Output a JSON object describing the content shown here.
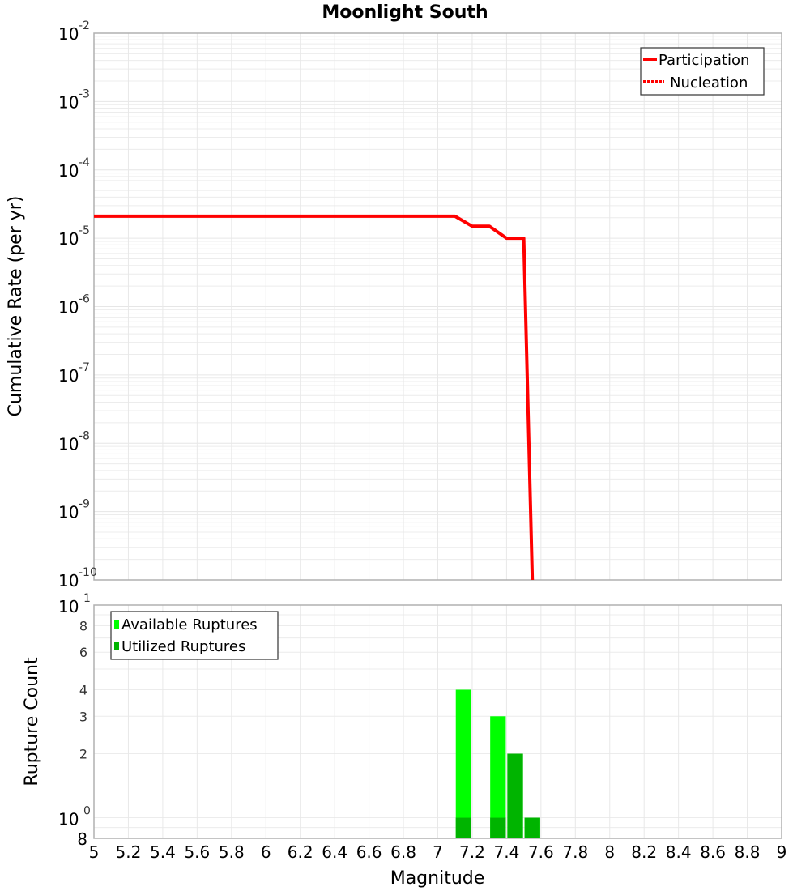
{
  "chart_data": [
    {
      "type": "line",
      "title": "Moonlight South",
      "xlabel": "Magnitude",
      "ylabel": "Cumulative Rate (per yr)",
      "yscale": "log",
      "ylim": [
        1e-10,
        0.01
      ],
      "xlim": [
        5,
        9
      ],
      "grid": true,
      "legend_position": "upper right",
      "y_tick_exponents": [
        -2,
        -3,
        -4,
        -5,
        -6,
        -7,
        -8,
        -9,
        -10
      ],
      "series": [
        {
          "name": "Participation",
          "style": "solid",
          "color": "#ff0000",
          "x": [
            5.0,
            7.1,
            7.2,
            7.3,
            7.4,
            7.5,
            7.55
          ],
          "y": [
            2.1e-05,
            2.1e-05,
            1.5e-05,
            1.5e-05,
            1e-05,
            1e-05,
            1e-10
          ]
        },
        {
          "name": "Nucleation",
          "style": "dotted",
          "color": "#ff0000",
          "x": [
            5.0,
            7.1,
            7.2,
            7.3,
            7.4,
            7.5,
            7.55
          ],
          "y": [
            2.1e-05,
            2.1e-05,
            1.5e-05,
            1.5e-05,
            1e-05,
            1e-05,
            1e-10
          ]
        }
      ]
    },
    {
      "type": "bar",
      "xlabel": "Magnitude",
      "ylabel": "Rupture Count",
      "yscale": "log",
      "ylim": [
        0.8,
        10
      ],
      "xlim": [
        5,
        9
      ],
      "grid": true,
      "legend_position": "upper left",
      "y_tick_labels": [
        {
          "value": 10,
          "label": "10",
          "exp": "1"
        },
        {
          "value": 8,
          "label": "8"
        },
        {
          "value": 6,
          "label": "6"
        },
        {
          "value": 4,
          "label": "4"
        },
        {
          "value": 3,
          "label": "3"
        },
        {
          "value": 2,
          "label": "2"
        },
        {
          "value": 1,
          "label": "10",
          "exp": "0"
        },
        {
          "value": 0.8,
          "label": "8"
        }
      ],
      "x_ticks": [
        "5",
        "5.2",
        "5.4",
        "5.6",
        "5.8",
        "6",
        "6.2",
        "6.4",
        "6.6",
        "6.8",
        "7",
        "7.2",
        "7.4",
        "7.6",
        "7.8",
        "8",
        "8.2",
        "8.4",
        "8.6",
        "8.8",
        "9"
      ],
      "categories": [
        7.15,
        7.35,
        7.45,
        7.55
      ],
      "series": [
        {
          "name": "Available Ruptures",
          "color": "#00ff00",
          "values": [
            4,
            3,
            2,
            1
          ]
        },
        {
          "name": "Utilized Ruptures",
          "color": "#00b400",
          "values": [
            1,
            1,
            2,
            1
          ]
        }
      ]
    }
  ],
  "title": "Moonlight South",
  "top": {
    "ylabel": "Cumulative Rate (per yr)",
    "legend": [
      "Participation",
      "Nucleation"
    ]
  },
  "bottom": {
    "ylabel": "Rupture Count",
    "xlabel": "Magnitude",
    "legend": [
      "Available Ruptures",
      "Utilized Ruptures"
    ]
  }
}
